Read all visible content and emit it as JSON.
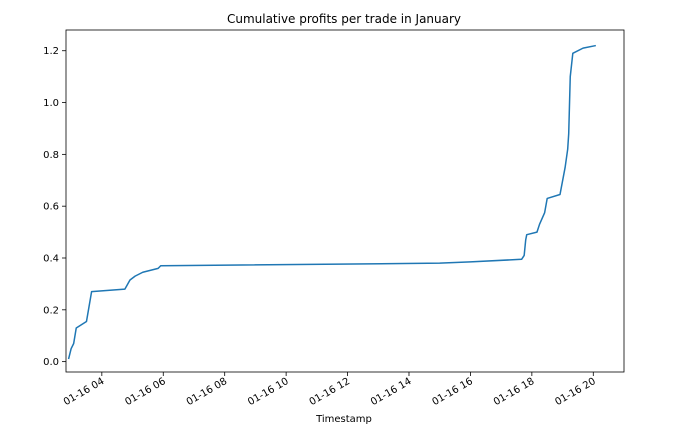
{
  "chart_data": {
    "type": "line",
    "title": "Cumulative profits per trade in January",
    "xlabel": "Timestamp",
    "ylabel": "",
    "x_ticks": [
      "01-16 04",
      "01-16 06",
      "01-16 08",
      "01-16 10",
      "01-16 12",
      "01-16 14",
      "01-16 16",
      "01-16 18",
      "01-16 20"
    ],
    "y_ticks": [
      "0.0",
      "0.2",
      "0.4",
      "0.6",
      "0.8",
      "1.0",
      "1.2"
    ],
    "xlim": [
      "01-16 02:50",
      "01-16 21:00"
    ],
    "ylim": [
      -0.04,
      1.28
    ],
    "grid": false,
    "series": [
      {
        "color": "#1f77b4",
        "x": [
          "01-16 02:55",
          "01-16 03:00",
          "01-16 03:05",
          "01-16 03:10",
          "01-16 03:30",
          "01-16 03:40",
          "01-16 04:45",
          "01-16 04:55",
          "01-16 05:05",
          "01-16 05:20",
          "01-16 05:50",
          "01-16 05:55",
          "01-16 15:00",
          "01-16 16:00",
          "01-16 17:40",
          "01-16 17:45",
          "01-16 17:48",
          "01-16 17:50",
          "01-16 18:10",
          "01-16 18:15",
          "01-16 18:25",
          "01-16 18:30",
          "01-16 18:55",
          "01-16 19:05",
          "01-16 19:10",
          "01-16 19:12",
          "01-16 19:15",
          "01-16 19:20",
          "01-16 19:40",
          "01-16 20:05"
        ],
        "y": [
          0.01,
          0.05,
          0.07,
          0.13,
          0.155,
          0.27,
          0.28,
          0.315,
          0.33,
          0.345,
          0.36,
          0.37,
          0.38,
          0.385,
          0.395,
          0.41,
          0.47,
          0.49,
          0.5,
          0.53,
          0.575,
          0.63,
          0.645,
          0.75,
          0.82,
          0.88,
          1.1,
          1.19,
          1.21,
          1.22
        ]
      }
    ]
  }
}
